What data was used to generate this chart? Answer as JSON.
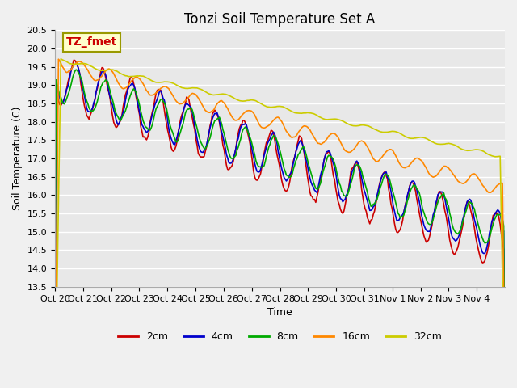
{
  "title": "Tonzi Soil Temperature Set A",
  "xlabel": "Time",
  "ylabel": "Soil Temperature (C)",
  "ylim": [
    13.5,
    20.5
  ],
  "legend_labels": [
    "2cm",
    "4cm",
    "8cm",
    "16cm",
    "32cm"
  ],
  "legend_colors": [
    "#cc0000",
    "#0000cc",
    "#00aa00",
    "#ff8800",
    "#cccc00"
  ],
  "xtick_labels": [
    "Oct 20",
    "Oct 21",
    "Oct 22",
    "Oct 23",
    "Oct 24",
    "Oct 25",
    "Oct 26",
    "Oct 27",
    "Oct 28",
    "Oct 29",
    "Oct 30",
    "Oct 31",
    "Nov 1",
    "Nov 2",
    "Nov 3",
    "Nov 4"
  ],
  "annotation_text": "TZ_fmet",
  "annotation_color": "#cc0000",
  "annotation_bg": "#ffffcc",
  "annotation_edge": "#999900",
  "plot_bg": "#e8e8e8",
  "fig_bg": "#f0f0f0",
  "grid_color": "#ffffff",
  "title_fontsize": 12,
  "axis_fontsize": 9,
  "tick_fontsize": 8,
  "yticks": [
    13.5,
    14.0,
    14.5,
    15.0,
    15.5,
    16.0,
    16.5,
    17.0,
    17.5,
    18.0,
    18.5,
    19.0,
    19.5,
    20.0,
    20.5
  ],
  "n_days": 16
}
